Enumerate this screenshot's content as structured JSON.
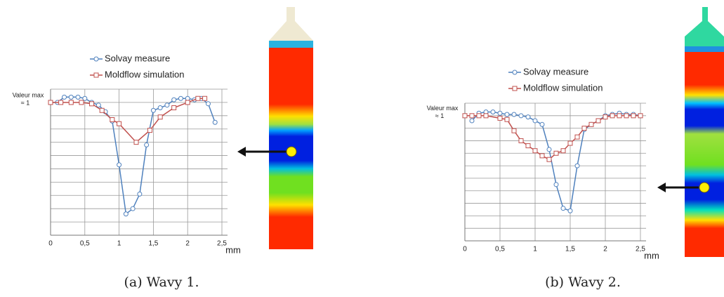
{
  "chart_data": [
    {
      "type": "line",
      "caption": "(a) Wavy 1.",
      "y_annotation": "Valeur max",
      "y_annotation_value": "≈ 1",
      "xlabel": "mm",
      "xlim": [
        0,
        2.5
      ],
      "ylim": [
        0,
        1.1
      ],
      "grid": true,
      "xticks": [
        0,
        {
          "value": 0.5,
          "label": "0,5"
        },
        1,
        {
          "value": 1.5,
          "label": "1,5"
        },
        2,
        {
          "value": 2.5,
          "label": "2,5"
        }
      ],
      "series": [
        {
          "name": "Solvay measure",
          "color": "#4f81bd",
          "marker": "circle",
          "x": [
            0,
            0.1,
            0.2,
            0.3,
            0.4,
            0.5,
            0.6,
            0.7,
            0.8,
            0.9,
            1.0,
            1.1,
            1.2,
            1.3,
            1.4,
            1.5,
            1.6,
            1.7,
            1.8,
            1.9,
            2.0,
            2.1,
            2.2,
            2.3,
            2.4
          ],
          "values": [
            1.0,
            1.0,
            1.04,
            1.04,
            1.04,
            1.03,
            1.0,
            0.98,
            0.93,
            0.86,
            0.53,
            0.16,
            0.2,
            0.31,
            0.68,
            0.94,
            0.96,
            0.98,
            1.02,
            1.03,
            1.03,
            1.02,
            1.03,
            0.99,
            0.85
          ]
        },
        {
          "name": "Moldflow simulation",
          "color": "#c0504d",
          "marker": "square",
          "x": [
            0,
            0.15,
            0.3,
            0.45,
            0.6,
            0.75,
            0.9,
            1.0,
            1.25,
            1.45,
            1.6,
            1.8,
            2.0,
            2.15,
            2.25
          ],
          "values": [
            1.0,
            1.0,
            1.0,
            1.0,
            0.99,
            0.94,
            0.87,
            0.84,
            0.7,
            0.79,
            0.89,
            0.96,
            1.0,
            1.03,
            1.03
          ]
        }
      ]
    },
    {
      "type": "line",
      "caption": "(b) Wavy 2.",
      "y_annotation": "Valeur max",
      "y_annotation_value": "≈ 1",
      "xlabel": "mm",
      "xlim": [
        0,
        2.5
      ],
      "ylim": [
        0,
        1.1
      ],
      "grid": true,
      "xticks": [
        0,
        {
          "value": 0.5,
          "label": "0,5"
        },
        1,
        {
          "value": 1.5,
          "label": "1,5"
        },
        2,
        {
          "value": 2.5,
          "label": "2,5"
        }
      ],
      "series": [
        {
          "name": "Solvay measure",
          "color": "#4f81bd",
          "marker": "circle",
          "x": [
            0.1,
            0.2,
            0.3,
            0.4,
            0.5,
            0.6,
            0.7,
            0.8,
            0.9,
            1.0,
            1.1,
            1.2,
            1.3,
            1.4,
            1.5,
            1.6,
            1.7,
            1.8,
            1.9,
            2.0,
            2.1,
            2.2,
            2.3,
            2.4,
            2.5
          ],
          "values": [
            0.96,
            1.02,
            1.03,
            1.03,
            1.02,
            1.01,
            1.01,
            1.0,
            0.99,
            0.96,
            0.93,
            0.73,
            0.45,
            0.26,
            0.24,
            0.6,
            0.89,
            0.93,
            0.96,
            1.0,
            1.01,
            1.02,
            1.01,
            1.01,
            1.0
          ]
        },
        {
          "name": "Moldflow simulation",
          "color": "#c0504d",
          "marker": "square",
          "x": [
            0,
            0.1,
            0.2,
            0.3,
            0.5,
            0.6,
            0.7,
            0.8,
            0.9,
            1.0,
            1.1,
            1.2,
            1.3,
            1.4,
            1.5,
            1.6,
            1.7,
            1.8,
            1.9,
            2.0,
            2.1,
            2.2,
            2.3,
            2.4,
            2.5
          ],
          "values": [
            1.0,
            1.0,
            1.0,
            1.0,
            0.98,
            0.97,
            0.88,
            0.8,
            0.76,
            0.72,
            0.68,
            0.65,
            0.7,
            0.72,
            0.78,
            0.83,
            0.9,
            0.93,
            0.96,
            0.99,
            1.0,
            1.0,
            1.0,
            1.0,
            1.0
          ]
        }
      ]
    }
  ]
}
